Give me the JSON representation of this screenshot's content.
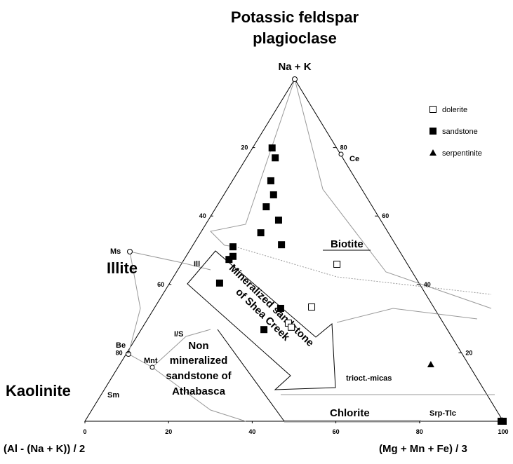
{
  "chart_data": {
    "type": "ternary",
    "title_lines": [
      "Potassic feldspar",
      "plagioclase"
    ],
    "top_label": "Na + K",
    "left_label": "(Al - (Na + K)) / 2",
    "right_label": "(Mg + Mn + Fe) / 3",
    "bottom_ticks": [
      0,
      20,
      40,
      60,
      80,
      100
    ],
    "left_ticks": [
      20,
      40,
      60,
      80
    ],
    "right_ticks": [
      20,
      40,
      60,
      80
    ],
    "field_labels": [
      "Illite",
      "Kaolinite",
      "Biotite",
      "Chlorite",
      "Srp-Tlc",
      "trioct.-micas",
      "Ms",
      "Ill",
      "I/S",
      "Be",
      "Mnt",
      "Sm",
      "Ce"
    ],
    "arrow_label": [
      "Mineralized sandstone",
      "of Shea Creek"
    ],
    "zone_label": [
      "Non",
      "mineralized",
      "sandstone of",
      "Athabasca"
    ],
    "series": [
      {
        "name": "dolerite",
        "marker": "open-square",
        "color": "#000000",
        "a": [
          45.9,
          33.4,
          28.7,
          27.5
        ],
        "b": [
          37.3,
          37.5,
          34.3,
          35.6
        ]
      },
      {
        "name": "sandstone",
        "marker": "square",
        "color": "#000000",
        "a": [
          79.9,
          77.0,
          70.3,
          66.2,
          62.7,
          58.8,
          55.1,
          51.6,
          51.0,
          48.2,
          47.3,
          40.4,
          33.0,
          26.8,
          0,
          0
        ],
        "b": [
          4.8,
          7.0,
          9.3,
          12.0,
          12.0,
          16.9,
          14.5,
          21.2,
          9.9,
          11.3,
          10.8,
          12.0,
          30.3,
          29.4,
          99.5,
          100
        ]
      },
      {
        "name": "serpentinite",
        "marker": "triangle",
        "color": "#000000",
        "a": [
          16.6,
          0.2
        ],
        "b": [
          74.4,
          99.6
        ]
      }
    ]
  }
}
